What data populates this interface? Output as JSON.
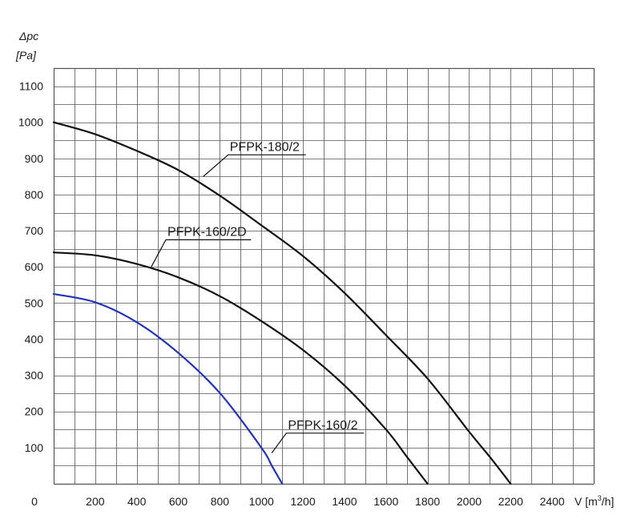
{
  "chart_data": {
    "type": "line",
    "title": "",
    "ylabel_line1": "Δpc",
    "ylabel_line2": "[Pa]",
    "xlabel_prefix": "V [m",
    "xlabel_sup": "3",
    "xlabel_suffix": "/h]",
    "origin_label": "0",
    "xlim": [
      0,
      2600
    ],
    "ylim": [
      0,
      1100
    ],
    "x_grid_step": 100,
    "y_grid_step": 50,
    "grid": true,
    "x_ticks": [
      {
        "value": 200,
        "label": "200"
      },
      {
        "value": 400,
        "label": "400"
      },
      {
        "value": 600,
        "label": "600"
      },
      {
        "value": 800,
        "label": "800"
      },
      {
        "value": 1000,
        "label": "1000"
      },
      {
        "value": 1200,
        "label": "1200"
      },
      {
        "value": 1400,
        "label": "1400"
      },
      {
        "value": 1600,
        "label": "1600"
      },
      {
        "value": 1800,
        "label": "1800"
      },
      {
        "value": 2000,
        "label": "2000"
      },
      {
        "value": 2200,
        "label": "2200"
      },
      {
        "value": 2400,
        "label": "2400"
      }
    ],
    "y_ticks": [
      {
        "value": 100,
        "label": "100"
      },
      {
        "value": 200,
        "label": "200"
      },
      {
        "value": 300,
        "label": "300"
      },
      {
        "value": 400,
        "label": "400"
      },
      {
        "value": 500,
        "label": "500"
      },
      {
        "value": 600,
        "label": "600"
      },
      {
        "value": 700,
        "label": "700"
      },
      {
        "value": 800,
        "label": "800"
      },
      {
        "value": 900,
        "label": "900"
      },
      {
        "value": 1000,
        "label": "1000"
      },
      {
        "value": 1100,
        "label": "1100"
      }
    ],
    "series": [
      {
        "name": "PFPK-180/2",
        "color": "#111111",
        "x": [
          0,
          200,
          400,
          600,
          800,
          1000,
          1200,
          1400,
          1600,
          1800,
          2000,
          2100,
          2200
        ],
        "y": [
          1000,
          967,
          921,
          868,
          797,
          715,
          630,
          528,
          411,
          291,
          144,
          74,
          0
        ],
        "label_anchor": {
          "x": 720,
          "y": 850
        },
        "label_pos": {
          "x": 840,
          "y": 910
        }
      },
      {
        "name": "PFPK-160/2D",
        "color": "#111111",
        "x": [
          0,
          200,
          400,
          600,
          800,
          1000,
          1200,
          1400,
          1600,
          1700,
          1800
        ],
        "y": [
          640,
          632,
          608,
          571,
          519,
          450,
          370,
          272,
          150,
          75,
          0
        ],
        "label_anchor": {
          "x": 470,
          "y": 600
        },
        "label_pos": {
          "x": 540,
          "y": 675
        }
      },
      {
        "name": "PFPK-160/2",
        "color": "#2233bb",
        "x": [
          0,
          200,
          400,
          600,
          800,
          1000,
          1050,
          1100
        ],
        "y": [
          525,
          502,
          447,
          362,
          251,
          100,
          50,
          0
        ],
        "label_anchor": {
          "x": 1050,
          "y": 85
        },
        "label_pos": {
          "x": 1120,
          "y": 140
        }
      }
    ]
  }
}
